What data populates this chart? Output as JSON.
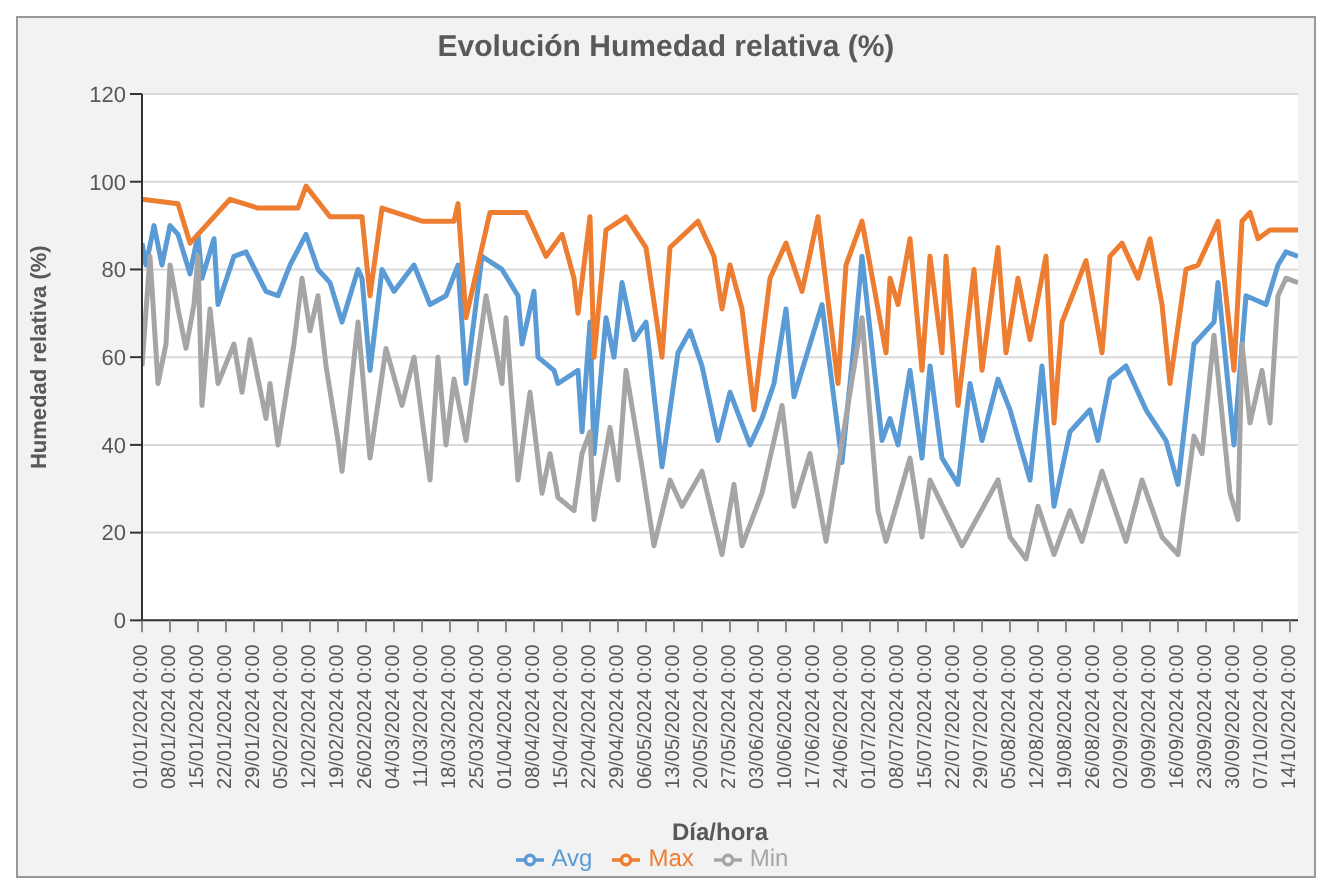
{
  "chart_data": {
    "type": "line",
    "title": "Evolución Humedad relativa (%)",
    "xlabel": "Día/hora",
    "ylabel": "Humedad relativa (%)",
    "xlim": [
      "2024-01-01",
      "2024-10-16"
    ],
    "xticks": [
      {
        "value": "2024-01-01",
        "label": "01/01/2024 0:00"
      },
      {
        "value": "2024-01-08",
        "label": "08/01/2024 0:00"
      },
      {
        "value": "2024-01-15",
        "label": "15/01/2024 0:00"
      },
      {
        "value": "2024-01-22",
        "label": "22/01/2024 0:00"
      },
      {
        "value": "2024-01-29",
        "label": "29/01/2024 0:00"
      },
      {
        "value": "2024-02-05",
        "label": "05/02/2024 0:00"
      },
      {
        "value": "2024-02-12",
        "label": "12/02/2024 0:00"
      },
      {
        "value": "2024-02-19",
        "label": "19/02/2024 0:00"
      },
      {
        "value": "2024-02-26",
        "label": "26/02/2024 0:00"
      },
      {
        "value": "2024-03-04",
        "label": "04/03/2024 0:00"
      },
      {
        "value": "2024-03-11",
        "label": "11/03/2024 0:00"
      },
      {
        "value": "2024-03-18",
        "label": "18/03/2024 0:00"
      },
      {
        "value": "2024-03-25",
        "label": "25/03/2024 0:00"
      },
      {
        "value": "2024-04-01",
        "label": "01/04/2024 0:00"
      },
      {
        "value": "2024-04-08",
        "label": "08/04/2024 0:00"
      },
      {
        "value": "2024-04-15",
        "label": "15/04/2024 0:00"
      },
      {
        "value": "2024-04-22",
        "label": "22/04/2024 0:00"
      },
      {
        "value": "2024-04-29",
        "label": "29/04/2024 0:00"
      },
      {
        "value": "2024-05-06",
        "label": "06/05/2024 0:00"
      },
      {
        "value": "2024-05-13",
        "label": "13/05/2024 0:00"
      },
      {
        "value": "2024-05-20",
        "label": "20/05/2024 0:00"
      },
      {
        "value": "2024-05-27",
        "label": "27/05/2024 0:00"
      },
      {
        "value": "2024-06-03",
        "label": "03/06/2024 0:00"
      },
      {
        "value": "2024-06-10",
        "label": "10/06/2024 0:00"
      },
      {
        "value": "2024-06-17",
        "label": "17/06/2024 0:00"
      },
      {
        "value": "2024-06-24",
        "label": "24/06/2024 0:00"
      },
      {
        "value": "2024-07-01",
        "label": "01/07/2024 0:00"
      },
      {
        "value": "2024-07-08",
        "label": "08/07/2024 0:00"
      },
      {
        "value": "2024-07-15",
        "label": "15/07/2024 0:00"
      },
      {
        "value": "2024-07-22",
        "label": "22/07/2024 0:00"
      },
      {
        "value": "2024-07-29",
        "label": "29/07/2024 0:00"
      },
      {
        "value": "2024-08-05",
        "label": "05/08/2024 0:00"
      },
      {
        "value": "2024-08-12",
        "label": "12/08/2024 0:00"
      },
      {
        "value": "2024-08-19",
        "label": "19/08/2024 0:00"
      },
      {
        "value": "2024-08-26",
        "label": "26/08/2024 0:00"
      },
      {
        "value": "2024-09-02",
        "label": "02/09/2024 0:00"
      },
      {
        "value": "2024-09-09",
        "label": "09/09/2024 0:00"
      },
      {
        "value": "2024-09-16",
        "label": "16/09/2024 0:00"
      },
      {
        "value": "2024-09-23",
        "label": "23/09/2024 0:00"
      },
      {
        "value": "2024-09-30",
        "label": "30/09/2024 0:00"
      },
      {
        "value": "2024-10-07",
        "label": "07/10/2024 0:00"
      },
      {
        "value": "2024-10-14",
        "label": "14/10/2024 0:00"
      }
    ],
    "ylim": [
      0,
      120
    ],
    "yticks": [
      0,
      20,
      40,
      60,
      80,
      100,
      120
    ],
    "grid": "y",
    "legend": "bottom",
    "series": [
      {
        "name": "Avg",
        "color": "#5b9bd5",
        "x": [
          "2024-01-01",
          "2024-01-02",
          "2024-01-04",
          "2024-01-06",
          "2024-01-08",
          "2024-01-10",
          "2024-01-13",
          "2024-01-15",
          "2024-01-16",
          "2024-01-19",
          "2024-01-20",
          "2024-01-24",
          "2024-01-27",
          "2024-02-01",
          "2024-02-04",
          "2024-02-07",
          "2024-02-11",
          "2024-02-14",
          "2024-02-17",
          "2024-02-20",
          "2024-02-24",
          "2024-02-25",
          "2024-02-27",
          "2024-03-01",
          "2024-03-04",
          "2024-03-09",
          "2024-03-13",
          "2024-03-17",
          "2024-03-20",
          "2024-03-22",
          "2024-03-26",
          "2024-03-31",
          "2024-04-04",
          "2024-04-05",
          "2024-04-08",
          "2024-04-09",
          "2024-04-13",
          "2024-04-14",
          "2024-04-19",
          "2024-04-20",
          "2024-04-22",
          "2024-04-23",
          "2024-04-26",
          "2024-04-28",
          "2024-04-30",
          "2024-05-03",
          "2024-05-06",
          "2024-05-10",
          "2024-05-14",
          "2024-05-17",
          "2024-05-20",
          "2024-05-24",
          "2024-05-27",
          "2024-06-01",
          "2024-06-04",
          "2024-06-07",
          "2024-06-10",
          "2024-06-12",
          "2024-06-15",
          "2024-06-19",
          "2024-06-24",
          "2024-06-27",
          "2024-06-29",
          "2024-07-04",
          "2024-07-06",
          "2024-07-08",
          "2024-07-11",
          "2024-07-14",
          "2024-07-16",
          "2024-07-19",
          "2024-07-23",
          "2024-07-26",
          "2024-07-29",
          "2024-08-02",
          "2024-08-05",
          "2024-08-10",
          "2024-08-13",
          "2024-08-16",
          "2024-08-20",
          "2024-08-25",
          "2024-08-27",
          "2024-08-30",
          "2024-09-03",
          "2024-09-08",
          "2024-09-13",
          "2024-09-16",
          "2024-09-20",
          "2024-09-25",
          "2024-09-26",
          "2024-09-30",
          "2024-10-03",
          "2024-10-08",
          "2024-10-11",
          "2024-10-13",
          "2024-10-16"
        ],
        "values": [
          86,
          81,
          90,
          81,
          90,
          88,
          79,
          88,
          78,
          87,
          72,
          83,
          84,
          75,
          74,
          81,
          88,
          80,
          77,
          68,
          80,
          78,
          57,
          80,
          75,
          81,
          72,
          74,
          81,
          54,
          83,
          80,
          74,
          63,
          75,
          60,
          57,
          54,
          57,
          43,
          68,
          38,
          69,
          60,
          77,
          64,
          68,
          35,
          61,
          66,
          58,
          41,
          52,
          40,
          46,
          54,
          71,
          51,
          60,
          72,
          36,
          63,
          83,
          41,
          46,
          40,
          57,
          37,
          58,
          37,
          31,
          54,
          41,
          55,
          48,
          32,
          58,
          26,
          43,
          48,
          41,
          55,
          58,
          48,
          41,
          31,
          63,
          68,
          77,
          40,
          74,
          72,
          81,
          84,
          83
        ]
      },
      {
        "name": "Max",
        "color": "#ed7d31",
        "x": [
          "2024-01-01",
          "2024-01-10",
          "2024-01-13",
          "2024-01-23",
          "2024-01-30",
          "2024-02-09",
          "2024-02-11",
          "2024-02-17",
          "2024-02-25",
          "2024-02-27",
          "2024-03-01",
          "2024-03-11",
          "2024-03-19",
          "2024-03-20",
          "2024-03-22",
          "2024-03-28",
          "2024-04-06",
          "2024-04-11",
          "2024-04-15",
          "2024-04-18",
          "2024-04-19",
          "2024-04-22",
          "2024-04-23",
          "2024-04-26",
          "2024-05-01",
          "2024-05-06",
          "2024-05-10",
          "2024-05-12",
          "2024-05-19",
          "2024-05-23",
          "2024-05-25",
          "2024-05-27",
          "2024-05-30",
          "2024-06-02",
          "2024-06-06",
          "2024-06-10",
          "2024-06-14",
          "2024-06-18",
          "2024-06-23",
          "2024-06-25",
          "2024-06-29",
          "2024-07-05",
          "2024-07-06",
          "2024-07-08",
          "2024-07-11",
          "2024-07-14",
          "2024-07-16",
          "2024-07-19",
          "2024-07-20",
          "2024-07-23",
          "2024-07-27",
          "2024-07-29",
          "2024-08-02",
          "2024-08-04",
          "2024-08-07",
          "2024-08-10",
          "2024-08-14",
          "2024-08-16",
          "2024-08-18",
          "2024-08-21",
          "2024-08-24",
          "2024-08-28",
          "2024-08-30",
          "2024-09-02",
          "2024-09-06",
          "2024-09-09",
          "2024-09-12",
          "2024-09-14",
          "2024-09-18",
          "2024-09-21",
          "2024-09-26",
          "2024-09-30",
          "2024-10-02",
          "2024-10-04",
          "2024-10-06",
          "2024-10-09",
          "2024-10-16"
        ],
        "values": [
          96,
          95,
          86,
          96,
          94,
          94,
          99,
          92,
          92,
          74,
          94,
          91,
          91,
          95,
          69,
          93,
          93,
          83,
          88,
          78,
          70,
          92,
          60,
          89,
          92,
          85,
          60,
          85,
          91,
          83,
          71,
          81,
          71,
          48,
          78,
          86,
          75,
          92,
          54,
          81,
          91,
          61,
          78,
          72,
          87,
          57,
          83,
          61,
          83,
          49,
          80,
          57,
          85,
          61,
          78,
          64,
          83,
          45,
          68,
          75,
          82,
          61,
          83,
          86,
          78,
          87,
          72,
          54,
          80,
          81,
          91,
          57,
          91,
          93,
          87,
          89,
          89
        ]
      },
      {
        "name": "Min",
        "color": "#a5a5a5",
        "x": [
          "2024-01-01",
          "2024-01-03",
          "2024-01-05",
          "2024-01-07",
          "2024-01-08",
          "2024-01-10",
          "2024-01-12",
          "2024-01-14",
          "2024-01-15",
          "2024-01-16",
          "2024-01-18",
          "2024-01-20",
          "2024-01-24",
          "2024-01-26",
          "2024-01-28",
          "2024-02-01",
          "2024-02-02",
          "2024-02-04",
          "2024-02-08",
          "2024-02-10",
          "2024-02-12",
          "2024-02-14",
          "2024-02-16",
          "2024-02-19",
          "2024-02-20",
          "2024-02-24",
          "2024-02-27",
          "2024-03-02",
          "2024-03-06",
          "2024-03-09",
          "2024-03-13",
          "2024-03-15",
          "2024-03-17",
          "2024-03-19",
          "2024-03-22",
          "2024-03-27",
          "2024-03-31",
          "2024-04-01",
          "2024-04-04",
          "2024-04-07",
          "2024-04-10",
          "2024-04-12",
          "2024-04-14",
          "2024-04-18",
          "2024-04-20",
          "2024-04-22",
          "2024-04-23",
          "2024-04-27",
          "2024-04-29",
          "2024-05-01",
          "2024-05-05",
          "2024-05-08",
          "2024-05-12",
          "2024-05-15",
          "2024-05-20",
          "2024-05-25",
          "2024-05-28",
          "2024-05-30",
          "2024-06-04",
          "2024-06-09",
          "2024-06-12",
          "2024-06-16",
          "2024-06-20",
          "2024-06-26",
          "2024-06-29",
          "2024-07-03",
          "2024-07-05",
          "2024-07-11",
          "2024-07-14",
          "2024-07-16",
          "2024-07-24",
          "2024-08-02",
          "2024-08-05",
          "2024-08-09",
          "2024-08-12",
          "2024-08-16",
          "2024-08-20",
          "2024-08-23",
          "2024-08-28",
          "2024-09-03",
          "2024-09-07",
          "2024-09-12",
          "2024-09-16",
          "2024-09-20",
          "2024-09-22",
          "2024-09-25",
          "2024-09-29",
          "2024-10-01",
          "2024-10-02",
          "2024-10-04",
          "2024-10-07",
          "2024-10-09",
          "2024-10-11",
          "2024-10-13",
          "2024-10-16"
        ],
        "values": [
          58,
          83,
          54,
          63,
          81,
          71,
          62,
          72,
          83,
          49,
          71,
          54,
          63,
          52,
          64,
          46,
          54,
          40,
          63,
          78,
          66,
          74,
          58,
          41,
          34,
          68,
          37,
          62,
          49,
          60,
          32,
          60,
          40,
          55,
          41,
          74,
          54,
          69,
          32,
          52,
          29,
          38,
          28,
          25,
          38,
          43,
          23,
          44,
          32,
          57,
          35,
          17,
          32,
          26,
          34,
          15,
          31,
          17,
          29,
          49,
          26,
          38,
          18,
          52,
          69,
          25,
          18,
          37,
          19,
          32,
          17,
          32,
          19,
          14,
          26,
          15,
          25,
          18,
          34,
          18,
          32,
          19,
          15,
          42,
          38,
          65,
          29,
          23,
          63,
          45,
          57,
          45,
          74,
          78,
          77
        ]
      }
    ]
  }
}
